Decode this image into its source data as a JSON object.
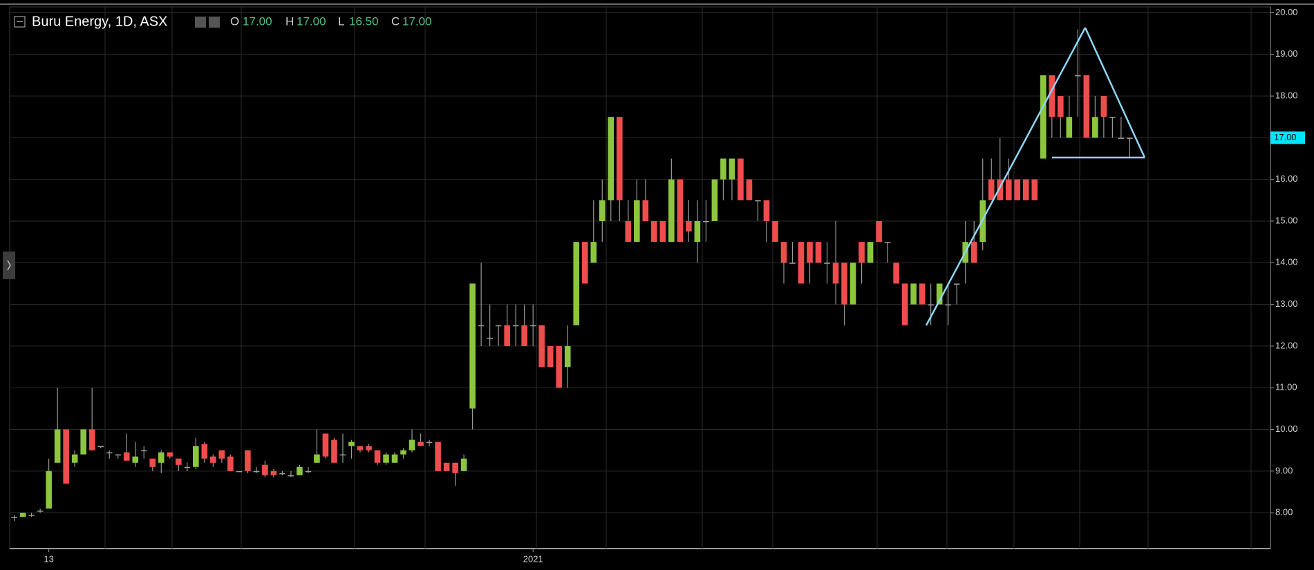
{
  "chart_data": {
    "type": "candlestick",
    "title": "Buru Energy, 1D, ASX",
    "ohlc_legend": [
      {
        "key": "O",
        "value": {
          "value": 17,
          "label": "17.00"
        }
      },
      {
        "key": "H",
        "value": {
          "value": 17,
          "label": "17.00"
        }
      },
      {
        "key": "L",
        "value": {
          "value": 16.5,
          "label": "16.50"
        }
      },
      {
        "key": "C",
        "value": {
          "value": 17,
          "label": "17.00"
        }
      }
    ],
    "last_price": {
      "value": 17,
      "label": "17.00"
    },
    "categories": [
      null,
      null,
      null,
      null,
      "13",
      null,
      null,
      null,
      null,
      null,
      null,
      null,
      null,
      null,
      null,
      null,
      null,
      null,
      null,
      null,
      null,
      null,
      null,
      null,
      null,
      null,
      null,
      null,
      null,
      null,
      null,
      null,
      null,
      null,
      null,
      null,
      null,
      null,
      null,
      null,
      null,
      null,
      null,
      null,
      null,
      null,
      null,
      null,
      null,
      null,
      null,
      null,
      null,
      null,
      null,
      null,
      null,
      null,
      null,
      null,
      "2021",
      null,
      null,
      null,
      null,
      null,
      null,
      null,
      null,
      null,
      null,
      null,
      null,
      null,
      null,
      null,
      null,
      null,
      null,
      null,
      null,
      null,
      null,
      null,
      null,
      null,
      null,
      null,
      null,
      null,
      null,
      null,
      null,
      null,
      null,
      null,
      null,
      null,
      null,
      null,
      null,
      null,
      null,
      null,
      null,
      null,
      null,
      null,
      null,
      null,
      null,
      null,
      null,
      null,
      null,
      null,
      null,
      null,
      null,
      null,
      null,
      null,
      null,
      null,
      null,
      null,
      null,
      null,
      null,
      null
    ],
    "open": [
      7.9,
      7.9,
      7.95,
      8.05,
      8.1,
      9.2,
      10.0,
      9.2,
      9.4,
      10.0,
      9.6,
      9.45,
      9.4,
      9.45,
      9.2,
      9.5,
      9.3,
      9.2,
      9.45,
      9.3,
      9.1,
      9.1,
      9.65,
      9.35,
      9.5,
      9.35,
      9.0,
      9.5,
      9.0,
      9.15,
      9.0,
      8.95,
      8.9,
      8.9,
      9.0,
      9.2,
      9.9,
      9.75,
      9.4,
      9.6,
      9.6,
      9.6,
      9.5,
      9.2,
      9.2,
      9.4,
      9.5,
      9.7,
      9.7,
      9.7,
      9.2,
      9.2,
      9.0,
      10.5,
      12.5,
      12.2,
      12.5,
      12.5,
      12.5,
      12.5,
      12.5,
      12.5,
      12.0,
      12.0,
      11.5,
      12.5,
      14.5,
      14.0,
      15.0,
      15.5,
      17.5,
      15.0,
      14.5,
      15.5,
      15.0,
      15.0,
      14.5,
      16.0,
      15.0,
      14.5,
      15.0,
      15.0,
      16.0,
      16.0,
      16.5,
      16.0,
      15.5,
      15.5,
      15.0,
      14.5,
      14.0,
      14.5,
      14.5,
      14.5,
      14.0,
      14.0,
      14.0,
      13.0,
      14.5,
      14.0,
      15.0,
      14.5,
      14.0,
      13.5,
      13.0,
      13.5,
      13.0,
      13.0,
      13.0,
      13.5,
      14.0,
      14.5,
      14.5,
      16.0,
      16.0,
      16.0,
      16.0,
      16.0,
      16.0,
      16.5,
      18.5,
      18.0,
      17.0,
      18.5,
      18.5,
      17.0,
      18.0,
      17.5,
      17.0,
      17.0
    ],
    "high": [
      7.95,
      8.0,
      8.0,
      8.1,
      9.3,
      11.0,
      10.0,
      9.5,
      10.0,
      11.0,
      9.6,
      9.5,
      9.4,
      9.9,
      9.7,
      9.6,
      9.3,
      9.5,
      9.45,
      9.3,
      9.2,
      9.8,
      9.7,
      9.4,
      9.5,
      9.4,
      9.0,
      9.5,
      9.1,
      9.25,
      9.05,
      9.0,
      9.0,
      9.15,
      9.1,
      10.0,
      9.9,
      9.8,
      9.9,
      9.75,
      9.6,
      9.65,
      9.5,
      9.45,
      9.45,
      9.55,
      10.0,
      9.9,
      9.75,
      9.7,
      9.2,
      9.2,
      9.4,
      13.5,
      14.0,
      13.0,
      12.5,
      13.0,
      13.0,
      13.0,
      13.0,
      12.5,
      12.0,
      12.0,
      12.5,
      14.5,
      14.5,
      15.5,
      16.0,
      17.5,
      17.5,
      15.5,
      16.0,
      16.0,
      15.0,
      15.0,
      16.5,
      16.0,
      15.5,
      15.5,
      15.5,
      16.0,
      16.5,
      16.5,
      16.5,
      16.0,
      15.5,
      15.5,
      15.0,
      14.5,
      14.5,
      14.5,
      14.5,
      14.5,
      14.5,
      15.0,
      14.0,
      14.0,
      14.5,
      14.5,
      15.0,
      14.5,
      14.0,
      13.5,
      13.5,
      13.5,
      13.5,
      13.5,
      13.5,
      13.5,
      15.0,
      15.0,
      16.5,
      16.5,
      17.0,
      16.5,
      16.0,
      16.0,
      16.0,
      18.5,
      18.5,
      18.0,
      18.0,
      19.6,
      18.5,
      18.0,
      18.0,
      17.5,
      17.5,
      17.0
    ],
    "low": [
      7.8,
      7.9,
      7.9,
      8.0,
      8.1,
      9.2,
      8.7,
      9.1,
      9.4,
      9.5,
      9.55,
      9.3,
      9.3,
      9.25,
      9.1,
      9.3,
      9.0,
      8.95,
      9.3,
      9.0,
      9.0,
      9.05,
      9.2,
      9.1,
      9.2,
      9.0,
      9.0,
      8.95,
      8.95,
      8.85,
      8.85,
      8.9,
      8.85,
      8.9,
      8.95,
      9.2,
      9.3,
      9.2,
      9.2,
      9.3,
      9.45,
      9.45,
      9.15,
      9.15,
      9.2,
      9.3,
      9.45,
      9.6,
      9.6,
      9.0,
      9.0,
      8.65,
      9.0,
      10.0,
      12.0,
      12.0,
      12.0,
      12.0,
      12.0,
      12.0,
      12.0,
      11.5,
      11.5,
      11.0,
      11.0,
      12.5,
      13.5,
      14.0,
      14.5,
      15.0,
      15.0,
      14.5,
      14.5,
      15.0,
      14.5,
      14.5,
      14.5,
      14.5,
      14.5,
      14.0,
      14.5,
      15.0,
      15.5,
      15.5,
      15.5,
      15.5,
      15.0,
      14.5,
      14.5,
      13.5,
      14.0,
      13.5,
      13.5,
      14.0,
      13.5,
      13.0,
      12.5,
      13.0,
      13.5,
      14.0,
      14.5,
      14.0,
      13.5,
      12.5,
      13.0,
      13.0,
      12.5,
      13.0,
      12.5,
      13.0,
      13.5,
      14.0,
      14.3,
      15.5,
      15.5,
      15.5,
      15.5,
      15.5,
      15.5,
      16.5,
      17.0,
      17.0,
      17.0,
      17.5,
      17.0,
      17.0,
      17.0,
      17.0,
      17.0,
      16.5
    ],
    "close": [
      7.9,
      8.0,
      7.95,
      8.05,
      9.0,
      10.0,
      8.7,
      9.4,
      10.0,
      9.5,
      9.6,
      9.45,
      9.4,
      9.25,
      9.35,
      9.5,
      9.1,
      9.45,
      9.35,
      9.15,
      9.1,
      9.6,
      9.3,
      9.2,
      9.3,
      9.0,
      9.0,
      9.0,
      9.0,
      8.9,
      8.9,
      8.95,
      8.9,
      9.1,
      9.0,
      9.4,
      9.35,
      9.2,
      9.4,
      9.7,
      9.5,
      9.5,
      9.2,
      9.4,
      9.4,
      9.5,
      9.75,
      9.6,
      9.7,
      9.0,
      9.0,
      8.95,
      9.3,
      13.5,
      12.5,
      12.2,
      12.5,
      12.0,
      12.5,
      12.0,
      12.5,
      11.5,
      11.5,
      11.0,
      12.0,
      14.5,
      13.5,
      14.5,
      15.5,
      17.5,
      15.5,
      14.5,
      15.5,
      15.0,
      14.5,
      14.5,
      16.0,
      14.5,
      14.75,
      15.0,
      15.0,
      16.0,
      16.5,
      16.5,
      15.5,
      15.5,
      15.5,
      15.0,
      14.5,
      14.0,
      14.0,
      13.5,
      14.0,
      14.0,
      14.0,
      13.5,
      13.0,
      14.0,
      14.0,
      14.5,
      14.5,
      14.5,
      13.5,
      12.5,
      13.5,
      13.0,
      13.0,
      13.5,
      13.0,
      13.5,
      14.5,
      14.0,
      15.5,
      15.5,
      15.5,
      15.5,
      15.5,
      15.5,
      15.5,
      18.5,
      17.5,
      17.5,
      17.5,
      18.5,
      17.0,
      17.5,
      17.5,
      17.5,
      17.0,
      17.0
    ],
    "up_color": "#8cc63e",
    "down_color": "#ef4d4d",
    "flat_color": "#a0a0a0",
    "last_price_color": "#00e5ff",
    "ylim": [
      7.14,
      20.14
    ],
    "yticks": [
      {
        "value": 8,
        "label": "8.00"
      },
      {
        "value": 9,
        "label": "9.00"
      },
      {
        "value": 10,
        "label": "10.00"
      },
      {
        "value": 11,
        "label": "11.00"
      },
      {
        "value": 12,
        "label": "12.00"
      },
      {
        "value": 13,
        "label": "13.00"
      },
      {
        "value": 14,
        "label": "14.00"
      },
      {
        "value": 15,
        "label": "15.00"
      },
      {
        "value": 16,
        "label": "16.00"
      },
      {
        "value": 17,
        "label": "17.00"
      },
      {
        "value": 18,
        "label": "18.00"
      },
      {
        "value": 19,
        "label": "19.00"
      },
      {
        "value": 20,
        "label": "20.00"
      }
    ],
    "grid": true
  }
}
